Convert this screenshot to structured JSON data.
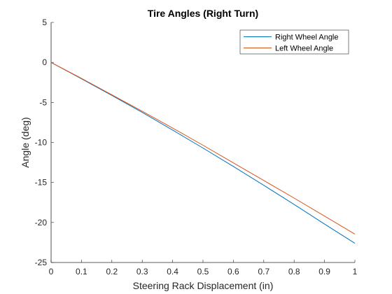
{
  "chart_data": {
    "type": "line",
    "title": "Tire Angles (Right Turn)",
    "xlabel": "Steering Rack Displacement (in)",
    "ylabel": "Angle (deg)",
    "xlim": [
      0,
      1
    ],
    "ylim": [
      -25,
      5
    ],
    "xticks": [
      0,
      0.1,
      0.2,
      0.3,
      0.4,
      0.5,
      0.6,
      0.7,
      0.8,
      0.9,
      1
    ],
    "yticks": [
      5,
      0,
      -5,
      -10,
      -15,
      -20,
      -25
    ],
    "xtick_labels": [
      "0",
      "0.1",
      "0.2",
      "0.3",
      "0.4",
      "0.5",
      "0.6",
      "0.7",
      "0.8",
      "0.9",
      "1"
    ],
    "ytick_labels": [
      "5",
      "0",
      "-5",
      "-10",
      "-15",
      "-20",
      "-25"
    ],
    "grid": false,
    "legend_position": "top-right",
    "series": [
      {
        "name": "Right Wheel Angle",
        "color": "#0072BD",
        "x": [
          0,
          0.1,
          0.2,
          0.3,
          0.4,
          0.5,
          0.6,
          0.7,
          0.8,
          0.9,
          1.0
        ],
        "y": [
          0,
          -2.05,
          -4.12,
          -6.25,
          -8.45,
          -10.7,
          -13.0,
          -15.35,
          -17.75,
          -20.2,
          -22.6
        ]
      },
      {
        "name": "Left Wheel Angle",
        "color": "#D95319",
        "x": [
          0,
          0.1,
          0.2,
          0.3,
          0.4,
          0.5,
          0.6,
          0.7,
          0.8,
          0.9,
          1.0
        ],
        "y": [
          0,
          -2.0,
          -4.05,
          -6.1,
          -8.2,
          -10.35,
          -12.55,
          -14.75,
          -16.95,
          -19.2,
          -21.45
        ]
      }
    ]
  }
}
